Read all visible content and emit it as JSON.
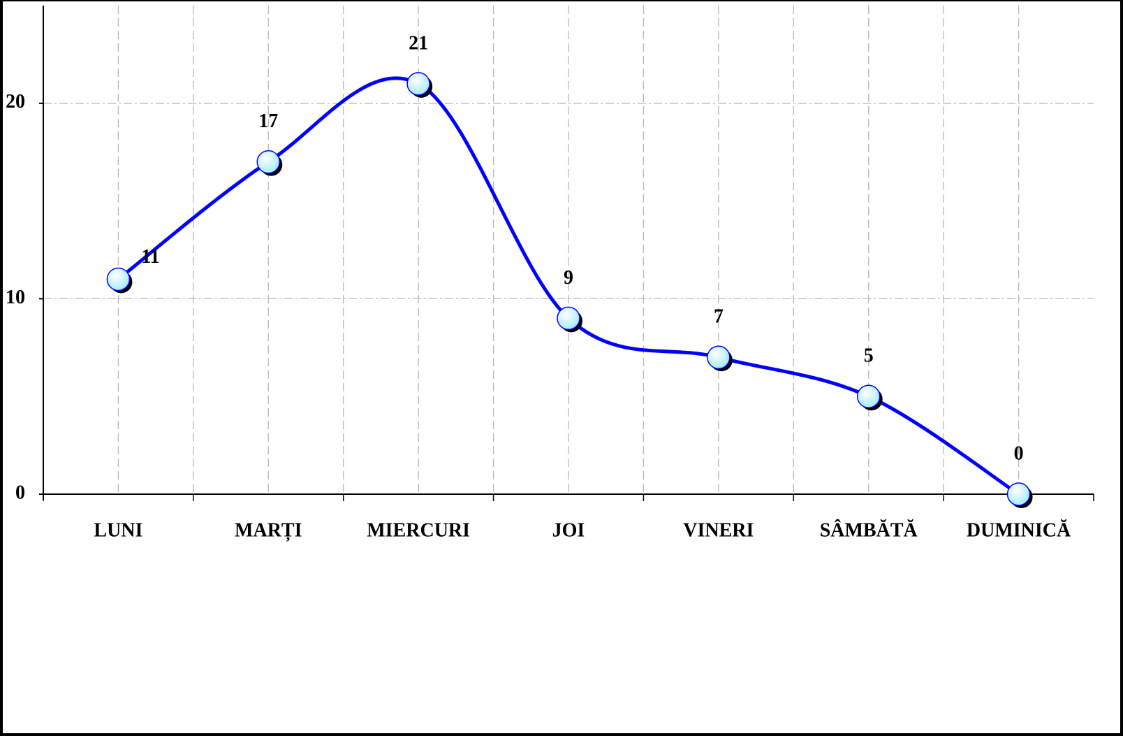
{
  "chart_data": {
    "type": "line",
    "categories": [
      "LUNI",
      "MARȚI",
      "MIERCURI",
      "JOI",
      "VINERI",
      "SÂMBĂTĂ",
      "DUMINICĂ"
    ],
    "values": [
      11,
      17,
      21,
      9,
      7,
      5,
      0
    ],
    "color": "#0000ff",
    "marker_color": "#c8f8ff",
    "smooth": true,
    "ylim": [
      0,
      25
    ],
    "yticks": [
      0,
      10,
      20
    ],
    "grid": true
  }
}
